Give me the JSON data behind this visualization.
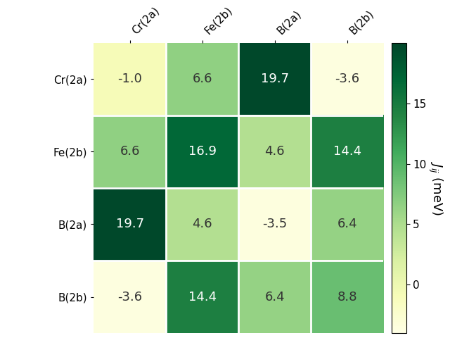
{
  "labels": [
    "Cr(2a)",
    "Fe(2b)",
    "B(2a)",
    "B(2b)"
  ],
  "matrix": [
    [
      -1.0,
      6.6,
      19.7,
      -3.6
    ],
    [
      6.6,
      16.9,
      4.6,
      14.4
    ],
    [
      19.7,
      4.6,
      -3.5,
      6.4
    ],
    [
      -3.6,
      14.4,
      6.4,
      8.8
    ]
  ],
  "cmap": "YlGn",
  "vmin": -4,
  "vmax": 20,
  "colorbar_label": "$J_{ij}$ (meV)",
  "colorbar_ticks": [
    0,
    5,
    10,
    15
  ],
  "text_threshold_brightness": 0.55,
  "figsize": [
    6.4,
    4.8
  ],
  "dpi": 100
}
